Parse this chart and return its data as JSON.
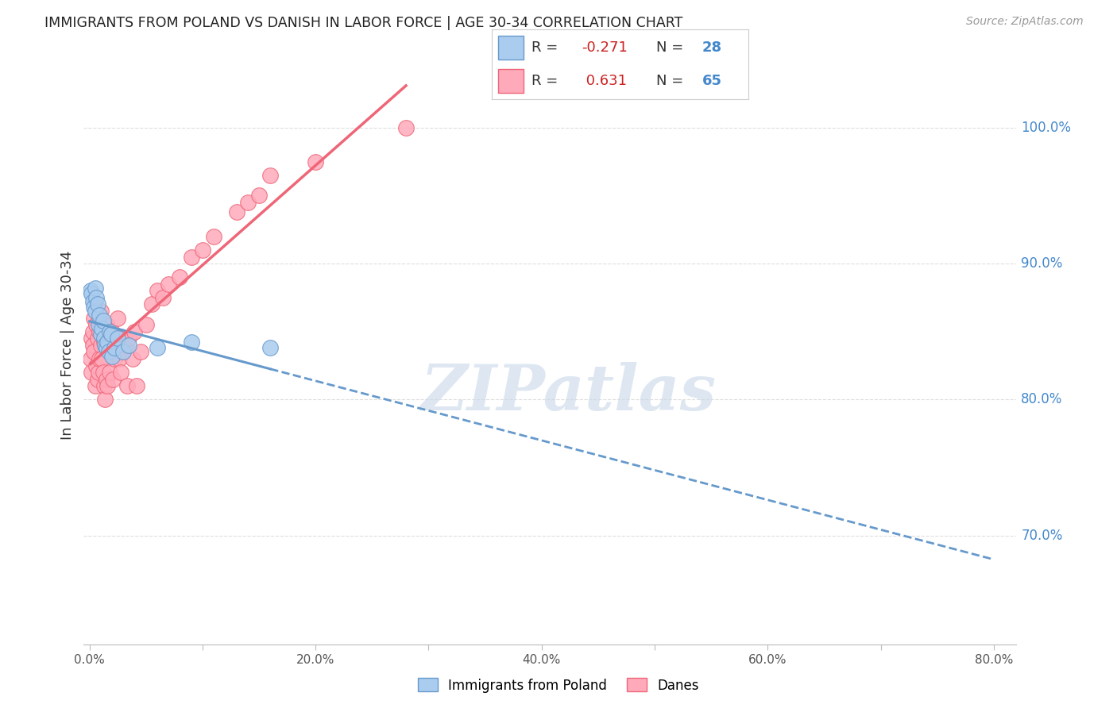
{
  "title": "IMMIGRANTS FROM POLAND VS DANISH IN LABOR FORCE | AGE 30-34 CORRELATION CHART",
  "source": "Source: ZipAtlas.com",
  "ylabel": "In Labor Force | Age 30-34",
  "poland_x": [
    0.001,
    0.002,
    0.003,
    0.004,
    0.005,
    0.005,
    0.006,
    0.007,
    0.008,
    0.009,
    0.01,
    0.011,
    0.012,
    0.013,
    0.014,
    0.015,
    0.016,
    0.017,
    0.018,
    0.019,
    0.02,
    0.022,
    0.025,
    0.03,
    0.035,
    0.06,
    0.09,
    0.16
  ],
  "poland_y": [
    0.88,
    0.878,
    0.872,
    0.868,
    0.865,
    0.882,
    0.875,
    0.87,
    0.855,
    0.862,
    0.848,
    0.852,
    0.858,
    0.845,
    0.84,
    0.838,
    0.842,
    0.835,
    0.85,
    0.848,
    0.832,
    0.838,
    0.845,
    0.835,
    0.84,
    0.838,
    0.842,
    0.838
  ],
  "danes_x": [
    0.001,
    0.002,
    0.002,
    0.003,
    0.003,
    0.004,
    0.004,
    0.005,
    0.005,
    0.006,
    0.006,
    0.007,
    0.007,
    0.008,
    0.008,
    0.009,
    0.009,
    0.01,
    0.01,
    0.011,
    0.012,
    0.012,
    0.013,
    0.013,
    0.014,
    0.014,
    0.015,
    0.015,
    0.016,
    0.016,
    0.017,
    0.018,
    0.018,
    0.019,
    0.02,
    0.021,
    0.022,
    0.023,
    0.025,
    0.026,
    0.027,
    0.028,
    0.03,
    0.032,
    0.033,
    0.035,
    0.038,
    0.04,
    0.042,
    0.045,
    0.05,
    0.055,
    0.06,
    0.065,
    0.07,
    0.08,
    0.09,
    0.1,
    0.11,
    0.13,
    0.14,
    0.15,
    0.16,
    0.2,
    0.28
  ],
  "danes_y": [
    0.83,
    0.845,
    0.82,
    0.85,
    0.84,
    0.86,
    0.835,
    0.87,
    0.81,
    0.855,
    0.825,
    0.845,
    0.815,
    0.858,
    0.82,
    0.85,
    0.83,
    0.865,
    0.84,
    0.83,
    0.852,
    0.82,
    0.842,
    0.81,
    0.848,
    0.8,
    0.855,
    0.815,
    0.84,
    0.81,
    0.838,
    0.848,
    0.82,
    0.835,
    0.85,
    0.815,
    0.83,
    0.84,
    0.86,
    0.83,
    0.845,
    0.82,
    0.835,
    0.84,
    0.81,
    0.845,
    0.83,
    0.85,
    0.81,
    0.835,
    0.855,
    0.87,
    0.88,
    0.875,
    0.885,
    0.89,
    0.905,
    0.91,
    0.92,
    0.938,
    0.945,
    0.95,
    0.965,
    0.975,
    1.0
  ],
  "poland_color": "#6699cc",
  "danes_color": "#ee6677",
  "poland_scatter_face": "#aaccee",
  "danes_scatter_face": "#ffaabb",
  "background_color": "#ffffff",
  "grid_color": "#dddddd",
  "watermark": "ZIPatlas",
  "watermark_color": "#c8d8e8",
  "R_poland": -0.271,
  "N_poland": 28,
  "R_danes": 0.631,
  "N_danes": 65,
  "xlim": [
    -0.005,
    0.82
  ],
  "ylim": [
    0.62,
    1.06
  ],
  "y_ticks_right": [
    0.7,
    0.8,
    0.9,
    1.0
  ],
  "y_tick_labels_right": [
    "70.0%",
    "80.0%",
    "90.0%",
    "100.0%"
  ],
  "x_ticks": [
    0.0,
    0.1,
    0.2,
    0.3,
    0.4,
    0.5,
    0.6,
    0.7,
    0.8
  ],
  "x_tick_labels": [
    "0.0%",
    "",
    "20.0%",
    "",
    "40.0%",
    "",
    "60.0%",
    "",
    "80.0%"
  ]
}
